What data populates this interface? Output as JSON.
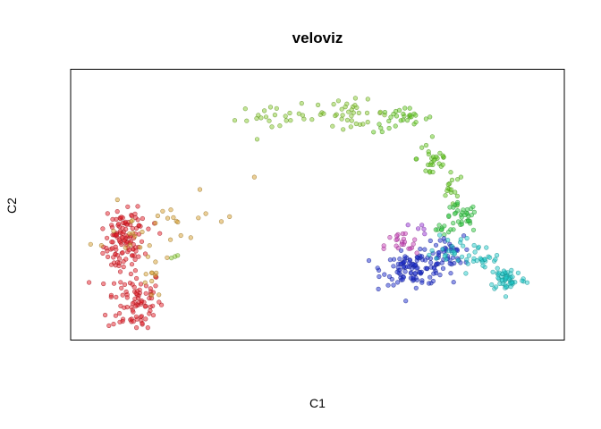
{
  "chart_data": {
    "type": "scatter",
    "title": "veloviz",
    "xlabel": "C1",
    "ylabel": "C2",
    "axes_shown": false,
    "grid": false,
    "legend": "none",
    "point_style": "semi-transparent filled circles with darker outline",
    "xlim": [
      0,
      100
    ],
    "ylim": [
      0,
      100
    ],
    "series": [
      {
        "color": "#e8202a",
        "clusters": [
          {
            "cx": 8,
            "cy": 33,
            "sx": 2.2,
            "sy": 5.5,
            "n": 95
          },
          {
            "cx": 10.5,
            "cy": 11,
            "sx": 3.0,
            "sy": 6.5,
            "n": 85
          },
          {
            "cx": 9,
            "cy": 43,
            "sx": 2.5,
            "sy": 2.5,
            "n": 25
          }
        ]
      },
      {
        "color": "#d8a030",
        "clusters": [
          {
            "cx": 10,
            "cy": 38,
            "sx": 4.5,
            "sy": 6,
            "n": 20
          },
          {
            "cx": 14.5,
            "cy": 18,
            "sx": 2.2,
            "sy": 5,
            "n": 10
          },
          {
            "cx": 24,
            "cy": 50,
            "sx": 6,
            "sy": 6,
            "n": 13
          }
        ]
      },
      {
        "color": "#88cc30",
        "clusters": [
          {
            "cx": 18,
            "cy": 29,
            "sx": 1.0,
            "sy": 0.8,
            "n": 3
          },
          {
            "cx": 42,
            "cy": 84,
            "sx": 5,
            "sy": 2.5,
            "n": 25
          },
          {
            "cx": 57,
            "cy": 86,
            "sx": 4,
            "sy": 2.5,
            "n": 35
          }
        ]
      },
      {
        "color": "#66cc22",
        "clusters": [
          {
            "cx": 68,
            "cy": 83,
            "sx": 3,
            "sy": 2.5,
            "n": 30
          },
          {
            "cx": 75,
            "cy": 68,
            "sx": 1.8,
            "sy": 5,
            "n": 28
          },
          {
            "cx": 79,
            "cy": 55,
            "sx": 1.2,
            "sy": 3.5,
            "n": 16
          }
        ]
      },
      {
        "color": "#33cc44",
        "clusters": [
          {
            "cx": 81,
            "cy": 44,
            "sx": 1.8,
            "sy": 3,
            "n": 35
          },
          {
            "cx": 77,
            "cy": 40,
            "sx": 1.5,
            "sy": 1.5,
            "n": 10
          }
        ]
      },
      {
        "color": "#1f2fd0",
        "clusters": [
          {
            "cx": 71,
            "cy": 24,
            "sx": 3.5,
            "sy": 3.2,
            "n": 110
          },
          {
            "cx": 77.5,
            "cy": 30,
            "sx": 2,
            "sy": 3.5,
            "n": 40
          }
        ]
      },
      {
        "color": "#cc44bb",
        "clusters": [
          {
            "cx": 68,
            "cy": 33,
            "sx": 1.8,
            "sy": 3,
            "n": 22
          }
        ]
      },
      {
        "color": "#9a33d8",
        "clusters": [
          {
            "cx": 72,
            "cy": 40,
            "sx": 1.5,
            "sy": 1.2,
            "n": 5
          }
        ]
      },
      {
        "color": "#22cccc",
        "clusters": [
          {
            "cx": 91,
            "cy": 20,
            "sx": 2,
            "sy": 2.5,
            "n": 55
          },
          {
            "cx": 85,
            "cy": 27,
            "sx": 2.5,
            "sy": 3,
            "n": 28
          },
          {
            "cx": 79,
            "cy": 33,
            "sx": 2,
            "sy": 3,
            "n": 20
          }
        ]
      }
    ]
  }
}
